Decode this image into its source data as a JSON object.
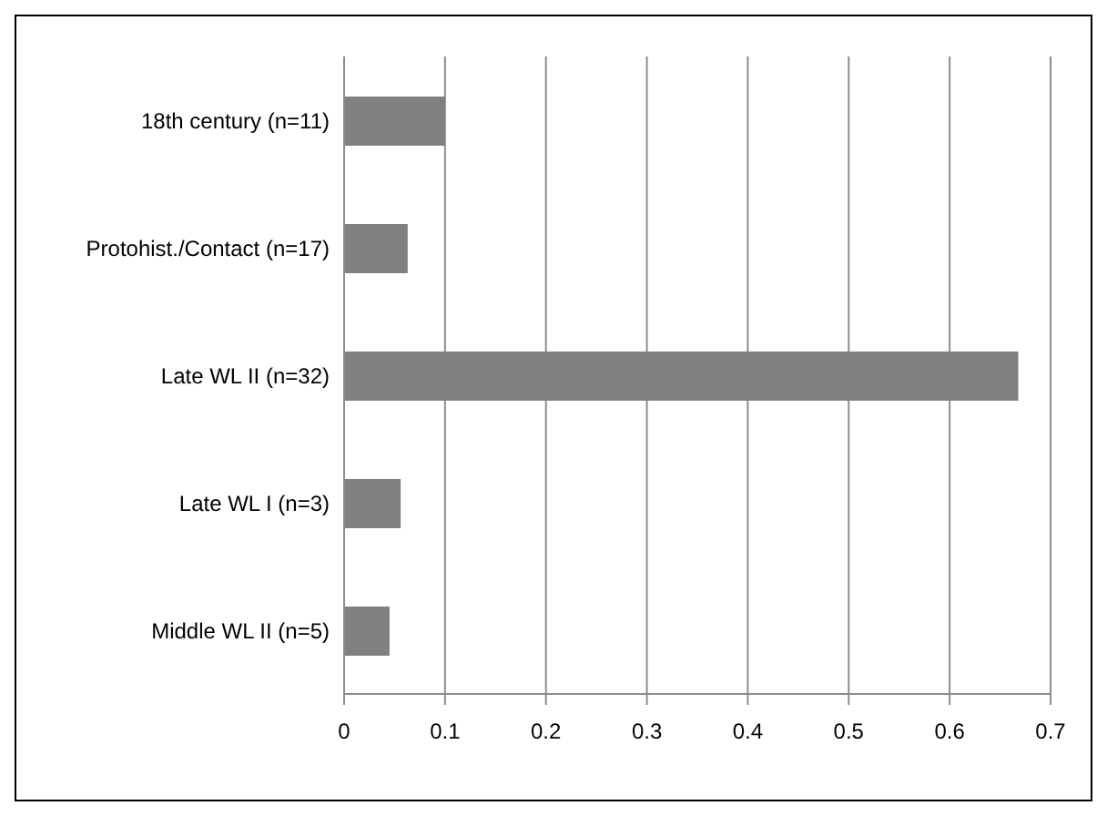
{
  "chart_data": {
    "type": "bar",
    "orientation": "horizontal",
    "categories": [
      "18th century (n=11)",
      "Protohist./Contact (n=17)",
      "Late WL II (n=32)",
      "Late WL I (n=3)",
      "Middle WL II (n=5)"
    ],
    "values": [
      0.1,
      0.063,
      0.668,
      0.056,
      0.045
    ],
    "color": "#808080",
    "xlim": [
      0,
      0.7
    ],
    "xticks": [
      0,
      0.1,
      0.2,
      0.3,
      0.4,
      0.5,
      0.6,
      0.7
    ],
    "grid": "x",
    "legend": false
  }
}
